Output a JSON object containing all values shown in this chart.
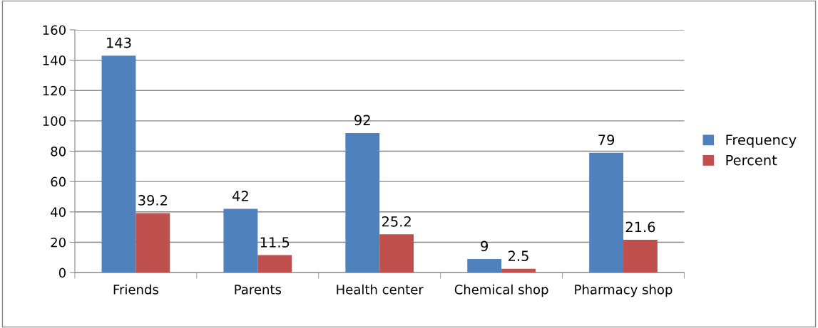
{
  "chart_data": {
    "type": "bar",
    "categories": [
      "Friends",
      "Parents",
      "Health center",
      "Chemical shop",
      "Pharmacy shop"
    ],
    "series": [
      {
        "name": "Frequency",
        "color": "#4f81bd",
        "values": [
          143,
          42,
          92,
          9,
          79
        ]
      },
      {
        "name": "Percent",
        "color": "#c0504d",
        "values": [
          39.2,
          11.5,
          25.2,
          2.5,
          21.6
        ]
      }
    ],
    "ylim": [
      0,
      160
    ],
    "yticks": [
      0,
      20,
      40,
      60,
      80,
      100,
      120,
      140,
      160
    ],
    "grid": "y",
    "legend": "right",
    "data_labels": true
  }
}
